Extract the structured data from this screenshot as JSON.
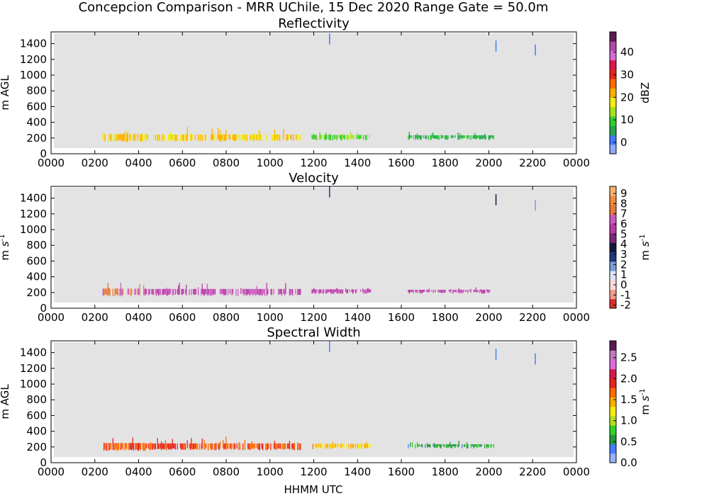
{
  "figure_title": "Concepcion Comparison - MRR UChile, 15 Dec 2020 Range Gate = 50.0m",
  "xlabel": "HHMM UTC",
  "chart_data": [
    {
      "type": "heatmap",
      "title": "Reflectivity",
      "ylabel": "m AGL",
      "xlim": [
        0,
        24
      ],
      "ylim": [
        0,
        1550
      ],
      "x_ticks": [
        "0000",
        "0200",
        "0400",
        "0600",
        "0800",
        "1000",
        "1200",
        "1400",
        "1600",
        "1800",
        "2000",
        "2200",
        "0000"
      ],
      "y_ticks": [
        0,
        200,
        400,
        600,
        800,
        1000,
        1200,
        1400
      ],
      "background_color": "#e3e3e3",
      "colorbar": {
        "label": "dBZ",
        "range": [
          -5,
          49
        ],
        "ticks": [
          "0",
          "10",
          "20",
          "30",
          "40"
        ],
        "tick_values": [
          0,
          10,
          20,
          30,
          40
        ],
        "colors": [
          "#8fa8ff",
          "#3e7bff",
          "#1fa84c",
          "#2fd12a",
          "#a6e21a",
          "#f0ee10",
          "#ffb000",
          "#ff6a00",
          "#e8251a",
          "#d8184e",
          "#d86ad8",
          "#b04aa8",
          "#5a1a55"
        ]
      },
      "segments": [
        {
          "start": 2.35,
          "end": 4.3,
          "cb_value": 20.5,
          "base": 160,
          "top": 250,
          "peak": 330
        },
        {
          "start": 4.3,
          "end": 11.4,
          "cb_value": 20,
          "base": 165,
          "top": 245,
          "peak": 340
        },
        {
          "start": 11.9,
          "end": 14.6,
          "cb_value": 11,
          "base": 180,
          "top": 240,
          "peak": 280
        },
        {
          "start": 16.3,
          "end": 20.2,
          "cb_value": 7,
          "base": 185,
          "top": 235,
          "peak": 280
        }
      ],
      "upper_echoes": [
        {
          "time": 12.7,
          "height": 1450,
          "cb_value": 0
        },
        {
          "time": 20.3,
          "height": 1360,
          "cb_value": 0
        },
        {
          "time": 22.1,
          "height": 1310,
          "cb_value": 0
        }
      ]
    },
    {
      "type": "heatmap",
      "title": "Velocity",
      "ylabel": "m $s^{-1}$",
      "xlim": [
        0,
        24
      ],
      "ylim": [
        0,
        1550
      ],
      "x_ticks": [
        "0000",
        "0200",
        "0400",
        "0600",
        "0800",
        "1000",
        "1200",
        "1400",
        "1600",
        "1800",
        "2000",
        "2200",
        "0000"
      ],
      "y_ticks": [
        0,
        200,
        400,
        600,
        800,
        1000,
        1200,
        1400
      ],
      "background_color": "#e3e3e3",
      "colorbar": {
        "label": "m $s^{-1}$",
        "range": [
          -2.3,
          9.7
        ],
        "ticks": [
          "-2",
          "-1",
          "0",
          "1",
          "2",
          "3",
          "4",
          "5",
          "6",
          "7",
          "8",
          "9"
        ],
        "tick_values": [
          -2,
          -1,
          0,
          1,
          2,
          3,
          4,
          5,
          6,
          7,
          8,
          9
        ],
        "colors": [
          "#d7302b",
          "#f59a8a",
          "#fbdcd8",
          "#dde6f5",
          "#7a9fd6",
          "#203a80",
          "#141a3a",
          "#7a2a78",
          "#b83aa6",
          "#cc5ac0",
          "#e87a3c",
          "#f38a3a",
          "#fbb070"
        ]
      },
      "segments": [
        {
          "start": 2.35,
          "end": 4.3,
          "cb_value": 7.2,
          "base": 160,
          "top": 250,
          "peak": 330
        },
        {
          "start": 4.3,
          "end": 11.4,
          "cb_value": 6.2,
          "base": 165,
          "top": 245,
          "peak": 340
        },
        {
          "start": 11.9,
          "end": 14.6,
          "cb_value": 5.8,
          "base": 190,
          "top": 240,
          "peak": 260
        },
        {
          "start": 16.3,
          "end": 20.2,
          "cb_value": 5.8,
          "base": 195,
          "top": 235,
          "peak": 270
        }
      ],
      "upper_echoes": [
        {
          "time": 12.7,
          "height": 1470,
          "cb_value": 2.6
        },
        {
          "time": 20.3,
          "height": 1370,
          "cb_value": 3.5
        },
        {
          "time": 22.1,
          "height": 1300,
          "cb_value": 2.2
        }
      ]
    },
    {
      "type": "heatmap",
      "title": "Spectral Width",
      "ylabel": "m AGL",
      "xlim": [
        0,
        24
      ],
      "ylim": [
        0,
        1550
      ],
      "x_ticks": [
        "0000",
        "0200",
        "0400",
        "0600",
        "0800",
        "1000",
        "1200",
        "1400",
        "1600",
        "1800",
        "2000",
        "2200",
        "0000"
      ],
      "y_ticks": [
        0,
        200,
        400,
        600,
        800,
        1000,
        1200,
        1400
      ],
      "background_color": "#e3e3e3",
      "colorbar": {
        "label": "m $s^{-1}$",
        "range": [
          0,
          2.9
        ],
        "ticks": [
          "0.0",
          "0.5",
          "1.0",
          "1.5",
          "2.0",
          "2.5"
        ],
        "tick_values": [
          0,
          0.5,
          1,
          1.5,
          2,
          2.5
        ],
        "colors": [
          "#9ab0ff",
          "#4a7cff",
          "#1e9a3c",
          "#2fd12a",
          "#b2e21a",
          "#f6ee10",
          "#ffb000",
          "#ff6a00",
          "#e8251a",
          "#d8184e",
          "#e06ae0",
          "#c07ac0",
          "#5a1a55"
        ]
      },
      "segments": [
        {
          "start": 2.35,
          "end": 4.3,
          "cb_value": 1.75,
          "base": 160,
          "top": 250,
          "peak": 330
        },
        {
          "start": 4.3,
          "end": 11.4,
          "cb_value": 1.8,
          "base": 165,
          "top": 245,
          "peak": 340
        },
        {
          "start": 11.9,
          "end": 14.6,
          "cb_value": 1.4,
          "base": 180,
          "top": 240,
          "peak": 270
        },
        {
          "start": 16.3,
          "end": 20.2,
          "cb_value": 0.6,
          "base": 190,
          "top": 235,
          "peak": 280
        }
      ],
      "upper_echoes": [
        {
          "time": 12.7,
          "height": 1470,
          "cb_value": 0.3
        },
        {
          "time": 20.3,
          "height": 1370,
          "cb_value": 0.3
        },
        {
          "time": 22.1,
          "height": 1310,
          "cb_value": 0.3
        }
      ]
    }
  ]
}
